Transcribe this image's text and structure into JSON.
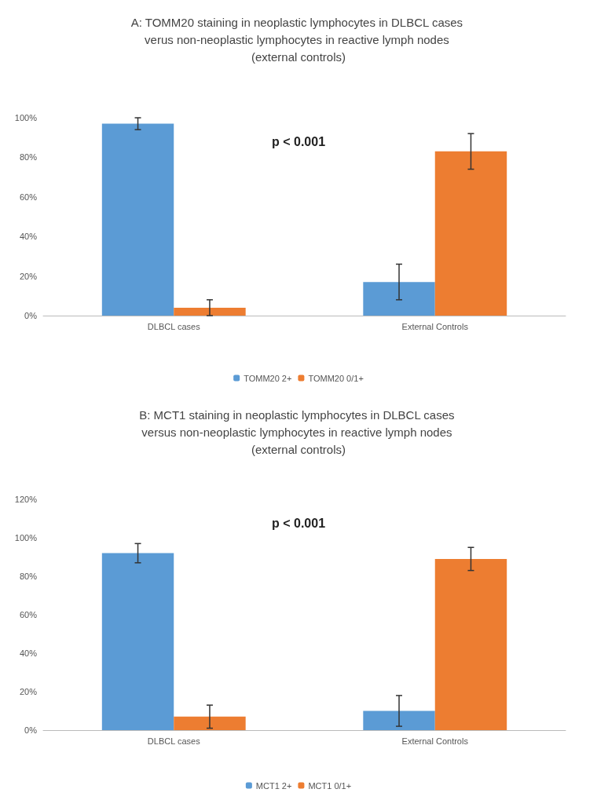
{
  "chart_data": [
    {
      "type": "bar",
      "title": "A: TOMM20 staining in neoplastic lymphocytes in DLBCL cases verus non-neoplastic lymphocytes in reactive lymph nodes (external controls)",
      "categories": [
        "DLBCL cases",
        "External Controls"
      ],
      "series": [
        {
          "name": "TOMM20 2+",
          "color": "#5b9bd5",
          "values": [
            97,
            17
          ],
          "errors": [
            3,
            9
          ]
        },
        {
          "name": "TOMM20 0/1+",
          "color": "#ed7d31",
          "values": [
            4,
            83
          ],
          "errors": [
            4,
            9
          ]
        }
      ],
      "ylim": [
        0,
        100
      ],
      "yticks": [
        {
          "value": 0,
          "label": "0%"
        },
        {
          "value": 20,
          "label": "20%"
        },
        {
          "value": 40,
          "label": "40%"
        },
        {
          "value": 60,
          "label": "60%"
        },
        {
          "value": 80,
          "label": "80%"
        },
        {
          "value": 100,
          "label": "100%"
        }
      ],
      "annotations": [
        "p < 0.001"
      ],
      "grid": false,
      "legend": "bottom"
    },
    {
      "type": "bar",
      "title": "B: MCT1 staining in neoplastic lymphocytes in DLBCL cases versus non-neoplastic lymphocytes in reactive lymph nodes (external controls)",
      "categories": [
        "DLBCL cases",
        "External Controls"
      ],
      "series": [
        {
          "name": "MCT1 2+",
          "color": "#5b9bd5",
          "values": [
            92,
            10
          ],
          "errors": [
            5,
            8
          ]
        },
        {
          "name": "MCT1 0/1+",
          "color": "#ed7d31",
          "values": [
            7,
            89
          ],
          "errors": [
            6,
            6
          ]
        }
      ],
      "ylim": [
        0,
        120
      ],
      "yticks": [
        {
          "value": 0,
          "label": "0%"
        },
        {
          "value": 20,
          "label": "20%"
        },
        {
          "value": 40,
          "label": "40%"
        },
        {
          "value": 60,
          "label": "60%"
        },
        {
          "value": 80,
          "label": "80%"
        },
        {
          "value": 100,
          "label": "100%"
        },
        {
          "value": 120,
          "label": "120%"
        }
      ],
      "annotations": [
        "p < 0.001"
      ],
      "grid": false,
      "legend": "bottom"
    }
  ]
}
